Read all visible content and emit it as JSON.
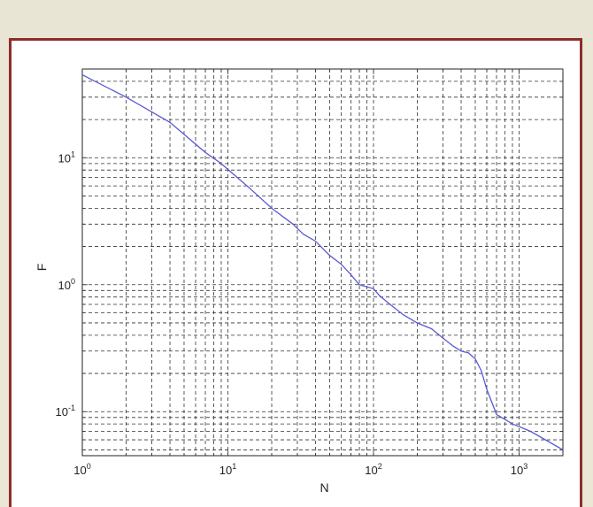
{
  "chart_data": {
    "type": "line",
    "title": "",
    "xlabel": "N",
    "ylabel": "F",
    "xscale": "log",
    "yscale": "log",
    "xlim": [
      1,
      2000
    ],
    "ylim": [
      0.045,
      50
    ],
    "grid": true,
    "grid_style": "dashed",
    "xticks": [
      {
        "value": 1,
        "base": "10",
        "exp": "0"
      },
      {
        "value": 10,
        "base": "10",
        "exp": "1"
      },
      {
        "value": 100,
        "base": "10",
        "exp": "2"
      },
      {
        "value": 1000,
        "base": "10",
        "exp": "3"
      }
    ],
    "yticks": [
      {
        "value": 0.1,
        "base": "10",
        "exp": "-1"
      },
      {
        "value": 1,
        "base": "10",
        "exp": "0"
      },
      {
        "value": 10,
        "base": "10",
        "exp": "1"
      }
    ],
    "series": [
      {
        "color": "#5a5ad6",
        "x": [
          1,
          2,
          4,
          7,
          9,
          14,
          20,
          28,
          33,
          40,
          50,
          60,
          70,
          80,
          100,
          110,
          130,
          160,
          200,
          250,
          300,
          350,
          400,
          450,
          500,
          550,
          600,
          700,
          900,
          1200,
          2000
        ],
        "y": [
          45,
          30,
          19,
          11,
          9,
          5.8,
          4.0,
          3.0,
          2.5,
          2.2,
          1.7,
          1.45,
          1.2,
          1.0,
          0.93,
          0.82,
          0.7,
          0.58,
          0.5,
          0.45,
          0.38,
          0.33,
          0.3,
          0.29,
          0.26,
          0.21,
          0.15,
          0.095,
          0.08,
          0.07,
          0.05
        ]
      }
    ]
  }
}
